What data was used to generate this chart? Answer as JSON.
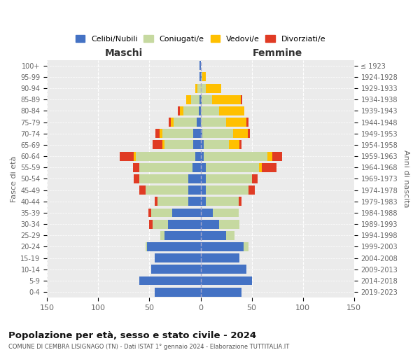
{
  "age_groups": [
    "100+",
    "95-99",
    "90-94",
    "85-89",
    "80-84",
    "75-79",
    "70-74",
    "65-69",
    "60-64",
    "55-59",
    "50-54",
    "45-49",
    "40-44",
    "35-39",
    "30-34",
    "25-29",
    "20-24",
    "15-19",
    "10-14",
    "5-9",
    "0-4"
  ],
  "birth_years": [
    "≤ 1923",
    "1924-1928",
    "1929-1933",
    "1934-1938",
    "1939-1943",
    "1944-1948",
    "1949-1953",
    "1954-1958",
    "1959-1963",
    "1964-1968",
    "1969-1973",
    "1974-1978",
    "1979-1983",
    "1984-1988",
    "1989-1993",
    "1994-1998",
    "1999-2003",
    "2004-2008",
    "2009-2013",
    "2014-2018",
    "2019-2023"
  ],
  "maschi": {
    "celibi": [
      1,
      1,
      0,
      1,
      2,
      4,
      7,
      7,
      5,
      8,
      12,
      12,
      12,
      28,
      32,
      35,
      52,
      45,
      48,
      60,
      45
    ],
    "coniugati": [
      0,
      0,
      3,
      8,
      15,
      22,
      30,
      28,
      58,
      52,
      48,
      42,
      30,
      20,
      15,
      4,
      2,
      0,
      0,
      0,
      0
    ],
    "vedovi": [
      0,
      0,
      2,
      5,
      3,
      3,
      3,
      2,
      2,
      0,
      0,
      0,
      0,
      0,
      0,
      0,
      0,
      0,
      0,
      0,
      0
    ],
    "divorziati": [
      0,
      0,
      0,
      0,
      2,
      2,
      4,
      10,
      14,
      6,
      5,
      6,
      3,
      3,
      3,
      0,
      0,
      0,
      0,
      0,
      0
    ]
  },
  "femmine": {
    "nubili": [
      0,
      1,
      0,
      1,
      0,
      0,
      2,
      3,
      3,
      5,
      5,
      5,
      5,
      12,
      18,
      25,
      42,
      38,
      45,
      50,
      40
    ],
    "coniugate": [
      0,
      1,
      5,
      10,
      18,
      25,
      30,
      25,
      62,
      52,
      45,
      42,
      32,
      25,
      20,
      8,
      5,
      0,
      0,
      0,
      0
    ],
    "vedove": [
      0,
      3,
      15,
      28,
      25,
      20,
      14,
      10,
      5,
      3,
      0,
      0,
      0,
      0,
      0,
      0,
      0,
      0,
      0,
      0,
      0
    ],
    "divorziate": [
      0,
      0,
      0,
      2,
      0,
      2,
      2,
      2,
      10,
      14,
      6,
      6,
      3,
      0,
      0,
      0,
      0,
      0,
      0,
      0,
      0
    ]
  },
  "colors": {
    "celibi": "#4472c4",
    "coniugati": "#c6d9a0",
    "vedovi": "#ffc000",
    "divorziati": "#e03b24"
  },
  "title": "Popolazione per età, sesso e stato civile - 2024",
  "subtitle": "COMUNE DI CEMBRA LISIGNAGO (TN) - Dati ISTAT 1° gennaio 2024 - Elaborazione TUTTITALIA.IT",
  "xlabel_left": "Maschi",
  "xlabel_right": "Femmine",
  "ylabel_left": "Fasce di età",
  "ylabel_right": "Anni di nascita",
  "xlim": 150,
  "bg_color": "#ffffff",
  "plot_bg_color": "#ebebeb",
  "grid_color": "#ffffff",
  "legend_labels": [
    "Celibi/Nubili",
    "Coniugati/e",
    "Vedovi/e",
    "Divorziati/e"
  ]
}
